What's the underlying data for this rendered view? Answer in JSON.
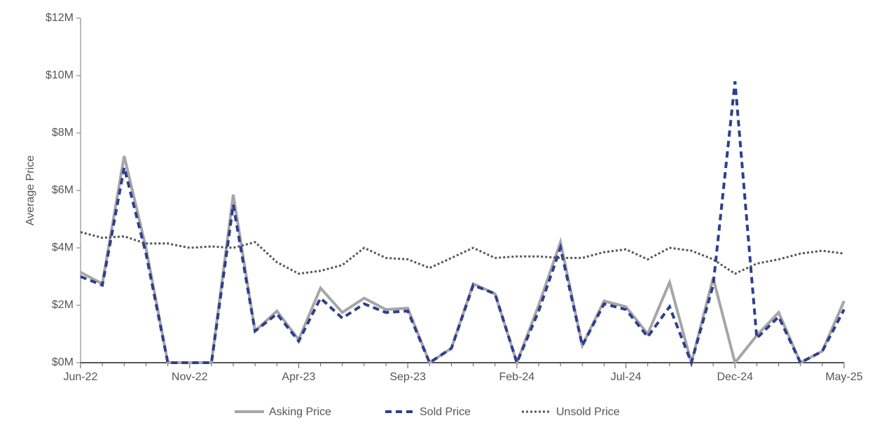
{
  "chart_data": {
    "type": "line",
    "y_label": "Average Price",
    "categories": [
      "Jun-22",
      null,
      null,
      null,
      null,
      "Nov-22",
      null,
      null,
      null,
      null,
      "Apr-23",
      null,
      null,
      null,
      null,
      "Sep-23",
      null,
      null,
      null,
      null,
      "Feb-24",
      null,
      null,
      null,
      null,
      "Jul-24",
      null,
      null,
      null,
      null,
      "Dec-24",
      null,
      null,
      null,
      null,
      "May-25"
    ],
    "series": [
      {
        "name": "Asking Price",
        "color": "#a6a6a8",
        "style": "solid",
        "values": [
          3.15,
          2.75,
          7.2,
          4.0,
          0,
          0,
          0,
          5.85,
          1.1,
          1.8,
          0.8,
          2.6,
          1.75,
          2.25,
          1.85,
          1.9,
          0,
          0.5,
          2.75,
          2.4,
          0,
          2.0,
          4.2,
          0.6,
          2.15,
          1.95,
          1.0,
          2.8,
          0,
          2.95,
          0,
          0.95,
          1.75,
          0,
          0.4,
          2.15
        ]
      },
      {
        "name": "Sold Price",
        "color": "#2e3f8f",
        "style": "dashed",
        "values": [
          3.0,
          2.7,
          6.8,
          3.8,
          0,
          0,
          0,
          5.5,
          1.1,
          1.7,
          0.75,
          2.25,
          1.55,
          2.05,
          1.75,
          1.8,
          0,
          0.5,
          2.7,
          2.4,
          0,
          1.8,
          4.0,
          0.6,
          2.05,
          1.85,
          0.9,
          1.95,
          0,
          2.7,
          9.8,
          0.85,
          1.6,
          0,
          0.4,
          1.85
        ]
      },
      {
        "name": "Unsold Price",
        "color": "#555555",
        "style": "dotted",
        "values": [
          4.55,
          4.35,
          4.4,
          4.15,
          4.15,
          4.0,
          4.05,
          4.0,
          4.2,
          3.5,
          3.1,
          3.2,
          3.4,
          4.0,
          3.65,
          3.6,
          3.3,
          3.65,
          4.0,
          3.65,
          3.7,
          3.7,
          3.65,
          3.65,
          3.85,
          3.95,
          3.6,
          4.0,
          3.9,
          3.6,
          3.1,
          3.45,
          3.6,
          3.8,
          3.9,
          3.8
        ]
      }
    ],
    "ylim": [
      0,
      12
    ],
    "yticks": [
      {
        "value": 0,
        "label": "$0M"
      },
      {
        "value": 2,
        "label": "$2M"
      },
      {
        "value": 4,
        "label": "$4M"
      },
      {
        "value": 6,
        "label": "$6M"
      },
      {
        "value": 8,
        "label": "$8M"
      },
      {
        "value": 10,
        "label": "$10M"
      },
      {
        "value": 12,
        "label": "$12M"
      }
    ],
    "legend": "bottom"
  }
}
